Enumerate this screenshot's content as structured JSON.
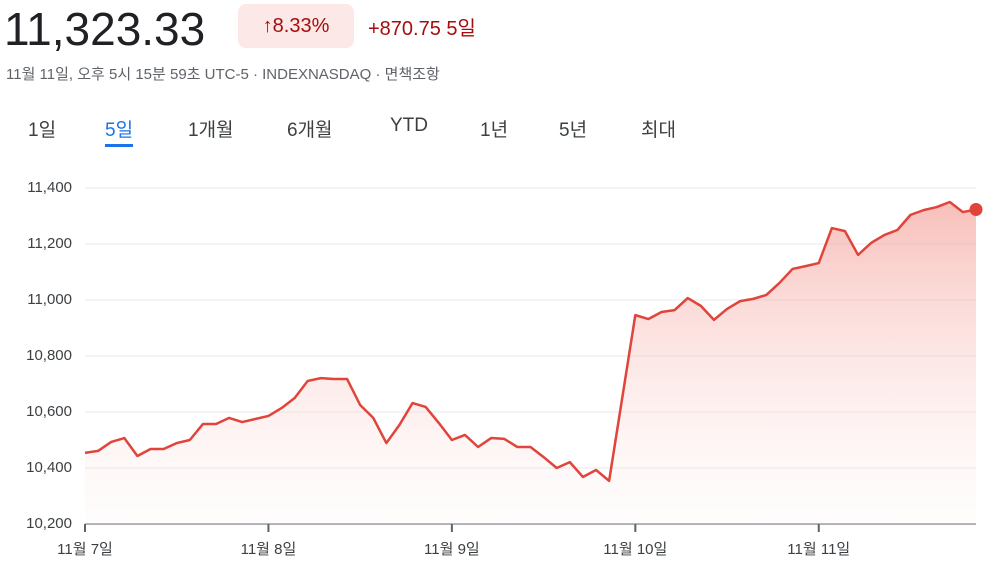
{
  "header": {
    "price": "11,323.33",
    "change_percent": "8.33%",
    "change": "+870.75",
    "period": "5일",
    "subtitle": "11월 11일, 오후 5시 15분 59초 UTC-5 · INDEXNASDAQ · 면책조항"
  },
  "tabs": {
    "items": [
      "1일",
      "5일",
      "1개월",
      "6개월",
      "YTD",
      "1년",
      "5년",
      "최대"
    ],
    "selected": 1
  },
  "chart_data": {
    "type": "area-line",
    "color": "#e0443a",
    "x": [
      0,
      1,
      2,
      3,
      4,
      5,
      6,
      7,
      8,
      9,
      10,
      11,
      12,
      13,
      14,
      15,
      16,
      17,
      18,
      19,
      20,
      21,
      22,
      23,
      24,
      25,
      26,
      27,
      28,
      29,
      30,
      31,
      32,
      33,
      34,
      35,
      36,
      37,
      38,
      39,
      40,
      42,
      43,
      44,
      45,
      46,
      47,
      48,
      49,
      50,
      51,
      52,
      53,
      54,
      55,
      56,
      57,
      58,
      59,
      60,
      61,
      62,
      63,
      64,
      65,
      66,
      67,
      68
    ],
    "values": [
      10454,
      10461,
      10493,
      10507,
      10443,
      10468,
      10468,
      10489,
      10500,
      10557,
      10557,
      10579,
      10564,
      10575,
      10586,
      10614,
      10650,
      10711,
      10721,
      10718,
      10718,
      10625,
      10579,
      10489,
      10554,
      10632,
      10618,
      10561,
      10500,
      10518,
      10475,
      10507,
      10504,
      10475,
      10475,
      10439,
      10400,
      10421,
      10368,
      10393,
      10354,
      10946,
      10932,
      10957,
      10964,
      11007,
      10979,
      10929,
      10968,
      10996,
      11004,
      11018,
      11061,
      11111,
      11121,
      11132,
      11257,
      11246,
      11161,
      11204,
      11232,
      11250,
      11304,
      11321,
      11332,
      11350,
      11314,
      11323.33
    ],
    "xlim": [
      0,
      68
    ],
    "xticks": [
      {
        "value": 0,
        "label": "11월 7일"
      },
      {
        "value": 14,
        "label": "11월 8일"
      },
      {
        "value": 28,
        "label": "11월 9일"
      },
      {
        "value": 42,
        "label": "11월 10일"
      },
      {
        "value": 56,
        "label": "11월 11일"
      }
    ],
    "ylim": [
      10200,
      11400
    ],
    "yticks": [
      {
        "value": 10200,
        "label": "10,200"
      },
      {
        "value": 10400,
        "label": "10,400"
      },
      {
        "value": 10600,
        "label": "10,600"
      },
      {
        "value": 10800,
        "label": "10,800"
      },
      {
        "value": 11000,
        "label": "11,000"
      },
      {
        "value": 11200,
        "label": "11,200"
      },
      {
        "value": 11400,
        "label": "11,400"
      }
    ],
    "grid": true
  }
}
